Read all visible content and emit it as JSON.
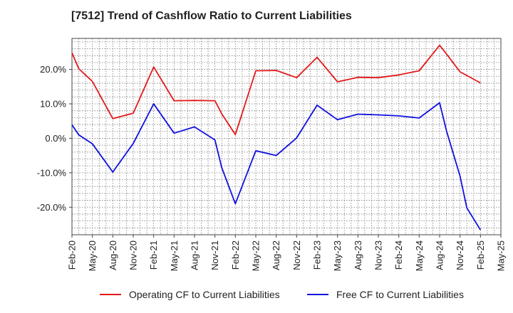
{
  "chart_data": {
    "type": "line",
    "title": "[7512]  Trend of Cashflow Ratio to Current Liabilities",
    "xlabel": "",
    "ylabel": "",
    "x_tick_labels": [
      "Feb-20",
      "May-20",
      "Aug-20",
      "Nov-20",
      "Feb-21",
      "May-21",
      "Aug-21",
      "Nov-21",
      "Feb-22",
      "May-22",
      "Aug-22",
      "Nov-22",
      "Feb-23",
      "May-23",
      "Aug-23",
      "Nov-23",
      "Feb-24",
      "May-24",
      "Aug-24",
      "Nov-24",
      "Feb-25",
      "May-25"
    ],
    "y_ticks": [
      20,
      10,
      0,
      -10,
      -20
    ],
    "y_tick_labels": [
      "20.0%",
      "10.0%",
      "0.0%",
      "-10.0%",
      "-20.0%"
    ],
    "ylim": [
      -28,
      29
    ],
    "grid": true,
    "legend_position": "bottom",
    "series": [
      {
        "name": "Operating CF to Current Liabilities",
        "color": "#e31a1c",
        "x": [
          "Feb-20",
          "Mar-20",
          "May-20",
          "Aug-20",
          "Nov-20",
          "Feb-21",
          "May-21",
          "Aug-21",
          "Nov-21",
          "Dec-21",
          "Feb-22",
          "May-22",
          "Aug-22",
          "Nov-22",
          "Feb-23",
          "May-23",
          "Aug-23",
          "Nov-23",
          "Feb-24",
          "May-24",
          "Aug-24",
          "Sep-24",
          "Nov-24",
          "Feb-25"
        ],
        "values": [
          24.8,
          20.2,
          16.5,
          5.7,
          7.3,
          20.7,
          10.9,
          11.0,
          10.9,
          7.1,
          1.1,
          19.6,
          19.7,
          17.6,
          23.5,
          16.4,
          17.7,
          17.6,
          18.4,
          19.6,
          27.0,
          24.5,
          19.3,
          16.1
        ]
      },
      {
        "name": "Free CF to Current Liabilities",
        "color": "#1010e0",
        "x": [
          "Feb-20",
          "Mar-20",
          "May-20",
          "Aug-20",
          "Nov-20",
          "Feb-21",
          "May-21",
          "Aug-21",
          "Nov-21",
          "Dec-21",
          "Feb-22",
          "May-22",
          "Aug-22",
          "Nov-22",
          "Feb-23",
          "May-23",
          "Aug-23",
          "Nov-23",
          "Feb-24",
          "May-24",
          "Aug-24",
          "Sep-24",
          "Nov-24",
          "Dec-24",
          "Feb-25"
        ],
        "values": [
          3.9,
          1.0,
          -1.6,
          -9.8,
          -1.5,
          10.0,
          1.5,
          3.3,
          -0.5,
          -8.5,
          -19.0,
          -3.6,
          -5.0,
          0.1,
          9.6,
          5.4,
          7.0,
          6.8,
          6.5,
          5.9,
          10.3,
          2.2,
          -11.0,
          -20.2,
          -26.6
        ]
      }
    ]
  }
}
